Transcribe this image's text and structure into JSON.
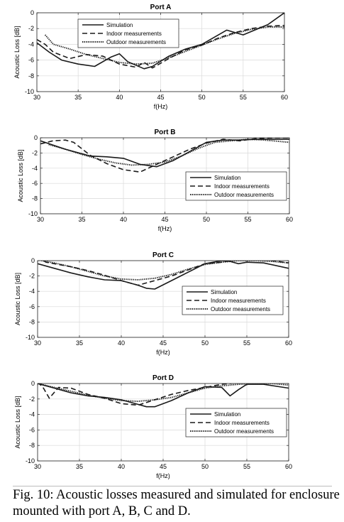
{
  "caption": "Fig. 10: Acoustic losses measured and simulated for enclosure mounted with port A, B, C and D.",
  "chart_data": [
    {
      "type": "line",
      "title": "Port A",
      "xlabel": "f(Hz)",
      "ylabel": "Acoustic Loss [dB]",
      "xlim": [
        30,
        60
      ],
      "ylim": [
        -10,
        0
      ],
      "xticks": [
        30,
        35,
        40,
        45,
        50,
        55,
        60
      ],
      "yticks": [
        -10,
        -8,
        -6,
        -4,
        -2,
        0
      ],
      "grid": true,
      "legend_position": "top-center",
      "series": [
        {
          "name": "Simulation",
          "style": "solid",
          "x": [
            30,
            31.5,
            33,
            35,
            37,
            39,
            40,
            41,
            43,
            44,
            46,
            48,
            50,
            53,
            55,
            58,
            60
          ],
          "y": [
            -3.8,
            -5.0,
            -6.0,
            -6.5,
            -6.8,
            -5.6,
            -5.2,
            -6.2,
            -7.1,
            -6.8,
            -5.5,
            -4.6,
            -4.0,
            -2.2,
            -2.8,
            -1.5,
            0.0
          ]
        },
        {
          "name": "Indoor measurements",
          "style": "dashed",
          "x": [
            30,
            31,
            32,
            34,
            36,
            38,
            40,
            42,
            43,
            44,
            46,
            48,
            50,
            52,
            54,
            56,
            58,
            60
          ],
          "y": [
            -3.4,
            -4.0,
            -5.0,
            -5.8,
            -5.3,
            -5.5,
            -6.5,
            -6.9,
            -6.3,
            -7.0,
            -5.8,
            -4.7,
            -4.1,
            -3.2,
            -2.5,
            -2.0,
            -1.7,
            -1.6
          ]
        },
        {
          "name": "Outdoor measurements",
          "style": "dotted",
          "x": [
            31,
            32,
            34,
            36,
            38,
            40,
            42,
            44,
            46,
            48,
            50,
            52,
            54,
            56,
            58,
            60
          ],
          "y": [
            -2.8,
            -4.0,
            -4.6,
            -5.3,
            -5.8,
            -6.3,
            -6.5,
            -6.4,
            -5.7,
            -4.9,
            -4.1,
            -3.3,
            -2.6,
            -2.1,
            -1.8,
            -1.8
          ]
        }
      ]
    },
    {
      "type": "line",
      "title": "Port B",
      "xlabel": "f(Hz)",
      "ylabel": "Acoustic Loss [dB]",
      "xlim": [
        30,
        60
      ],
      "ylim": [
        -10,
        0
      ],
      "xticks": [
        30,
        35,
        40,
        45,
        50,
        55,
        60
      ],
      "yticks": [
        -10,
        -8,
        -6,
        -4,
        -2,
        0
      ],
      "grid": true,
      "legend_position": "bottom-right",
      "series": [
        {
          "name": "Simulation",
          "style": "solid",
          "x": [
            30,
            33,
            36,
            38,
            40,
            42,
            44,
            46,
            48,
            50,
            52,
            54,
            56,
            58,
            60
          ],
          "y": [
            -0.4,
            -1.5,
            -2.4,
            -2.5,
            -2.7,
            -3.5,
            -3.8,
            -3.0,
            -1.8,
            -0.6,
            -0.3,
            -0.3,
            -0.2,
            -0.2,
            -0.2
          ]
        },
        {
          "name": "Indoor measurements",
          "style": "dashed",
          "x": [
            30,
            31.5,
            33,
            34,
            36,
            38,
            40,
            42,
            43,
            44,
            46,
            48,
            50,
            52,
            54,
            56,
            58,
            60
          ],
          "y": [
            -0.8,
            -0.4,
            -0.3,
            -0.6,
            -2.3,
            -3.4,
            -4.2,
            -4.5,
            -4.0,
            -3.5,
            -2.5,
            -1.5,
            -0.7,
            -0.2,
            -0.4,
            -0.1,
            0.0,
            0.0
          ]
        },
        {
          "name": "Outdoor measurements",
          "style": "dotted",
          "x": [
            31,
            33,
            35,
            37,
            39,
            41,
            43,
            45,
            47,
            49,
            51,
            53,
            55,
            57,
            60
          ],
          "y": [
            -0.9,
            -1.5,
            -2.2,
            -2.8,
            -3.3,
            -3.6,
            -3.5,
            -3.2,
            -2.4,
            -1.4,
            -0.6,
            -0.4,
            -0.2,
            -0.3,
            -0.6
          ]
        }
      ]
    },
    {
      "type": "line",
      "title": "Port C",
      "xlabel": "f(Hz)",
      "ylabel": "Acoustic Loss [dB]",
      "xlim": [
        30,
        60
      ],
      "ylim": [
        -10,
        0
      ],
      "xticks": [
        30,
        35,
        40,
        45,
        50,
        55,
        60
      ],
      "yticks": [
        -10,
        -8,
        -6,
        -4,
        -2,
        0
      ],
      "grid": true,
      "legend_position": "bottom-right",
      "series": [
        {
          "name": "Simulation",
          "style": "solid",
          "x": [
            30,
            32,
            34,
            36,
            38,
            40,
            42,
            43,
            44,
            46,
            48,
            50,
            52,
            53,
            54,
            55,
            57,
            60
          ],
          "y": [
            -0.4,
            -1.0,
            -1.6,
            -2.1,
            -2.5,
            -2.6,
            -3.2,
            -3.6,
            -3.7,
            -2.6,
            -1.5,
            -0.4,
            -0.0,
            -0.1,
            -0.4,
            -0.2,
            -0.3,
            -1.0
          ]
        },
        {
          "name": "Indoor measurements",
          "style": "dashed",
          "x": [
            30,
            31,
            32,
            34,
            36,
            38,
            40,
            42,
            44,
            46,
            48,
            50,
            52,
            54,
            56,
            58,
            60
          ],
          "y": [
            0.5,
            -0.2,
            -0.4,
            -0.8,
            -1.3,
            -1.9,
            -2.6,
            -3.2,
            -2.6,
            -2.0,
            -1.2,
            -0.4,
            -0.2,
            0.2,
            0.1,
            0.0,
            -0.3
          ]
        },
        {
          "name": "Outdoor measurements",
          "style": "dotted",
          "x": [
            30,
            32,
            34,
            36,
            38,
            40,
            42,
            44,
            46,
            48,
            50,
            52,
            54,
            56,
            58,
            60
          ],
          "y": [
            0.1,
            -0.3,
            -0.8,
            -1.4,
            -2.0,
            -2.4,
            -2.5,
            -2.3,
            -1.8,
            -1.1,
            -0.5,
            -0.2,
            0.0,
            0.0,
            -0.1,
            -0.3
          ]
        }
      ]
    },
    {
      "type": "line",
      "title": "Port D",
      "xlabel": "f(Hz)",
      "ylabel": "Acoustic Loss [dB]",
      "xlim": [
        30,
        60
      ],
      "ylim": [
        -10,
        0
      ],
      "xticks": [
        30,
        35,
        40,
        45,
        50,
        55,
        60
      ],
      "yticks": [
        -10,
        -8,
        -6,
        -4,
        -2,
        0
      ],
      "grid": true,
      "legend_position": "bottom-right",
      "series": [
        {
          "name": "Simulation",
          "style": "solid",
          "x": [
            30,
            32,
            34,
            36,
            38,
            40,
            42,
            43,
            44,
            46,
            48,
            50,
            52,
            53,
            54,
            55,
            57,
            60
          ],
          "y": [
            0.0,
            -0.6,
            -1.2,
            -1.6,
            -1.8,
            -2.1,
            -2.7,
            -3.0,
            -3.0,
            -2.2,
            -1.2,
            -0.4,
            -0.5,
            -1.6,
            -0.8,
            -0.1,
            -0.1,
            -0.6
          ]
        },
        {
          "name": "Indoor measurements",
          "style": "dashed",
          "x": [
            30,
            30.7,
            31.4,
            32.5,
            34,
            36,
            38,
            40,
            42,
            44,
            46,
            48,
            50,
            52,
            54,
            56,
            58,
            60
          ],
          "y": [
            0.2,
            -0.6,
            -1.9,
            -0.5,
            -0.6,
            -1.4,
            -1.9,
            -2.6,
            -2.8,
            -2.1,
            -1.4,
            -0.9,
            -0.5,
            -0.1,
            0.1,
            0.2,
            0.2,
            0.1
          ]
        },
        {
          "name": "Outdoor measurements",
          "style": "dotted",
          "x": [
            30,
            32,
            34,
            36,
            38,
            40,
            42,
            44,
            46,
            48,
            50,
            52,
            54,
            56,
            58,
            60
          ],
          "y": [
            0.0,
            -0.5,
            -1.0,
            -1.5,
            -1.9,
            -2.2,
            -2.3,
            -2.1,
            -1.8,
            -1.2,
            -0.6,
            -0.3,
            -0.1,
            0.0,
            0.0,
            -0.2
          ]
        }
      ]
    }
  ]
}
